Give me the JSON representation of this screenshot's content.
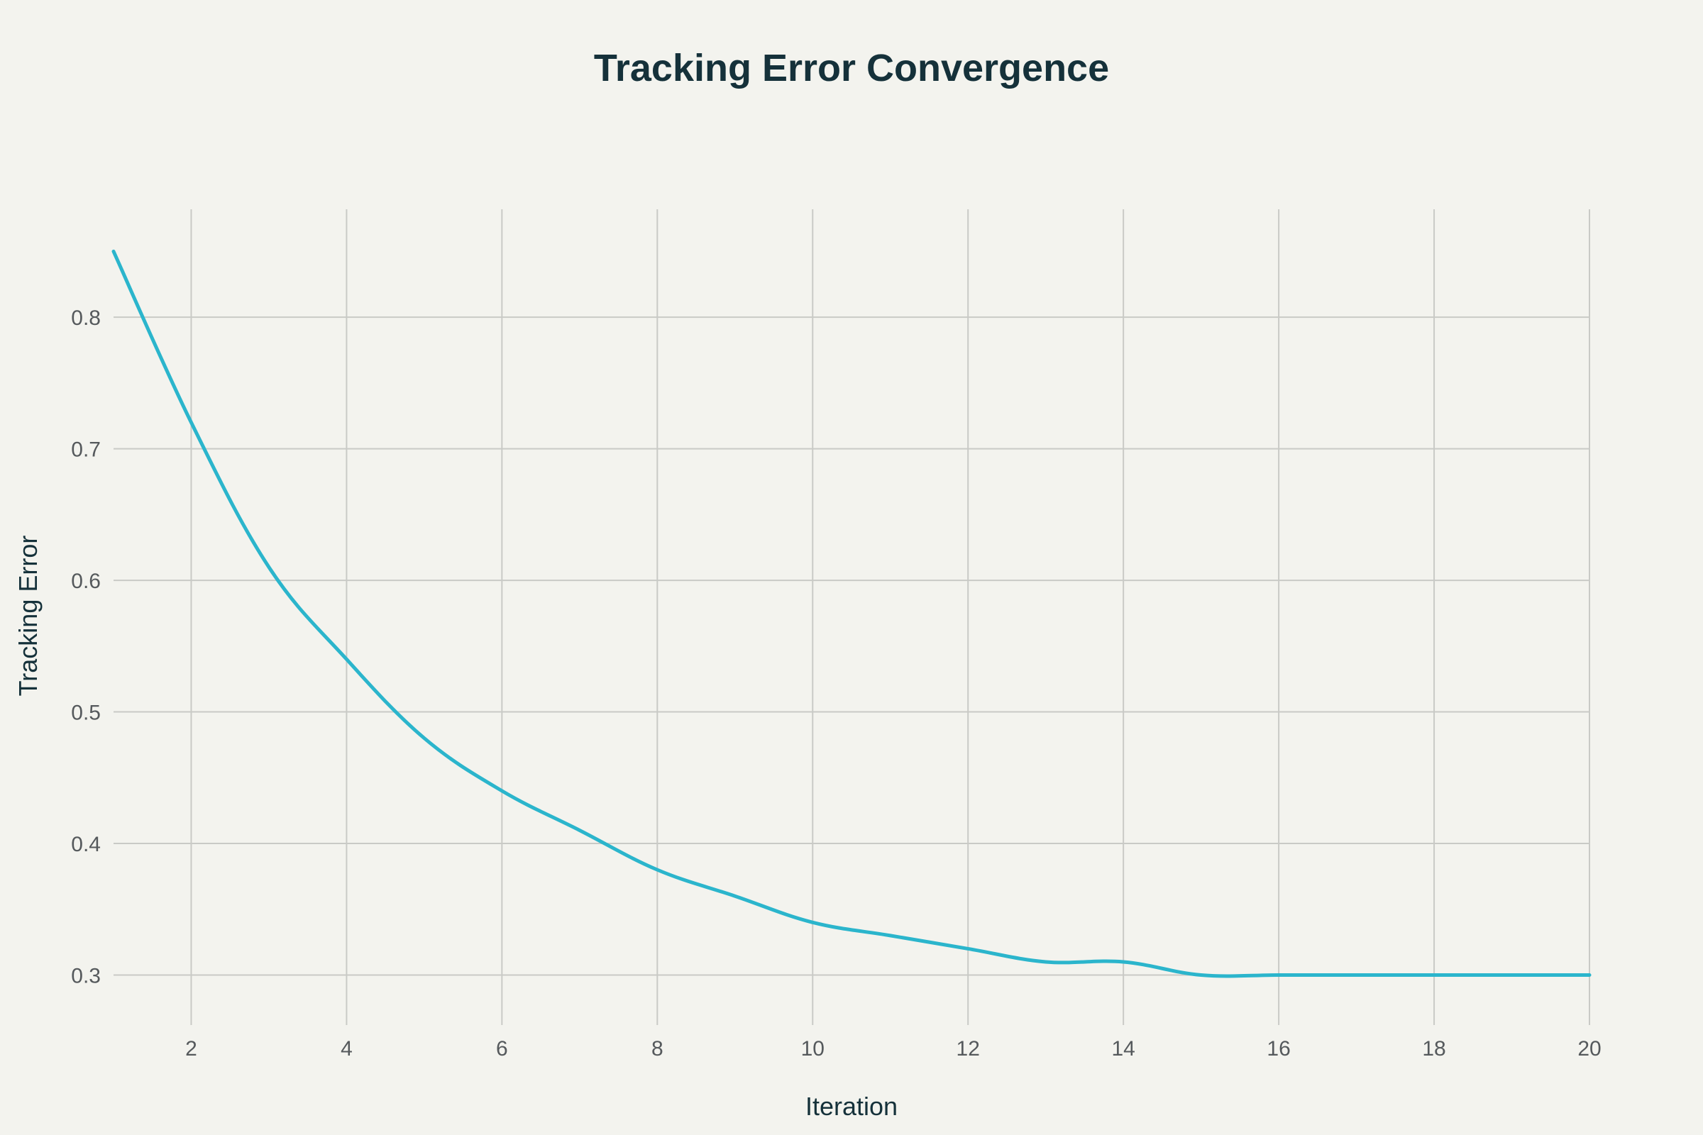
{
  "chart_data": {
    "type": "line",
    "title": "Tracking Error Convergence",
    "xlabel": "Iteration",
    "ylabel": "Tracking Error",
    "x": [
      1,
      2,
      3,
      4,
      5,
      6,
      7,
      8,
      9,
      10,
      11,
      12,
      13,
      14,
      15,
      16,
      17,
      18,
      19,
      20
    ],
    "series": [
      {
        "values": [
          0.85,
          0.72,
          0.61,
          0.54,
          0.48,
          0.44,
          0.41,
          0.38,
          0.36,
          0.34,
          0.33,
          0.32,
          0.31,
          0.31,
          0.3,
          0.3,
          0.3,
          0.3,
          0.3,
          0.3
        ],
        "color": "#2bb5cc"
      }
    ],
    "xlim": [
      1,
      20
    ],
    "ylim": [
      0.262,
      0.882
    ],
    "xticks": [
      "2",
      "4",
      "6",
      "8",
      "10",
      "12",
      "14",
      "16",
      "18",
      "20"
    ],
    "yticks": [
      "0.3",
      "0.4",
      "0.5",
      "0.6",
      "0.7",
      "0.8"
    ],
    "grid": true,
    "legend": "none"
  }
}
